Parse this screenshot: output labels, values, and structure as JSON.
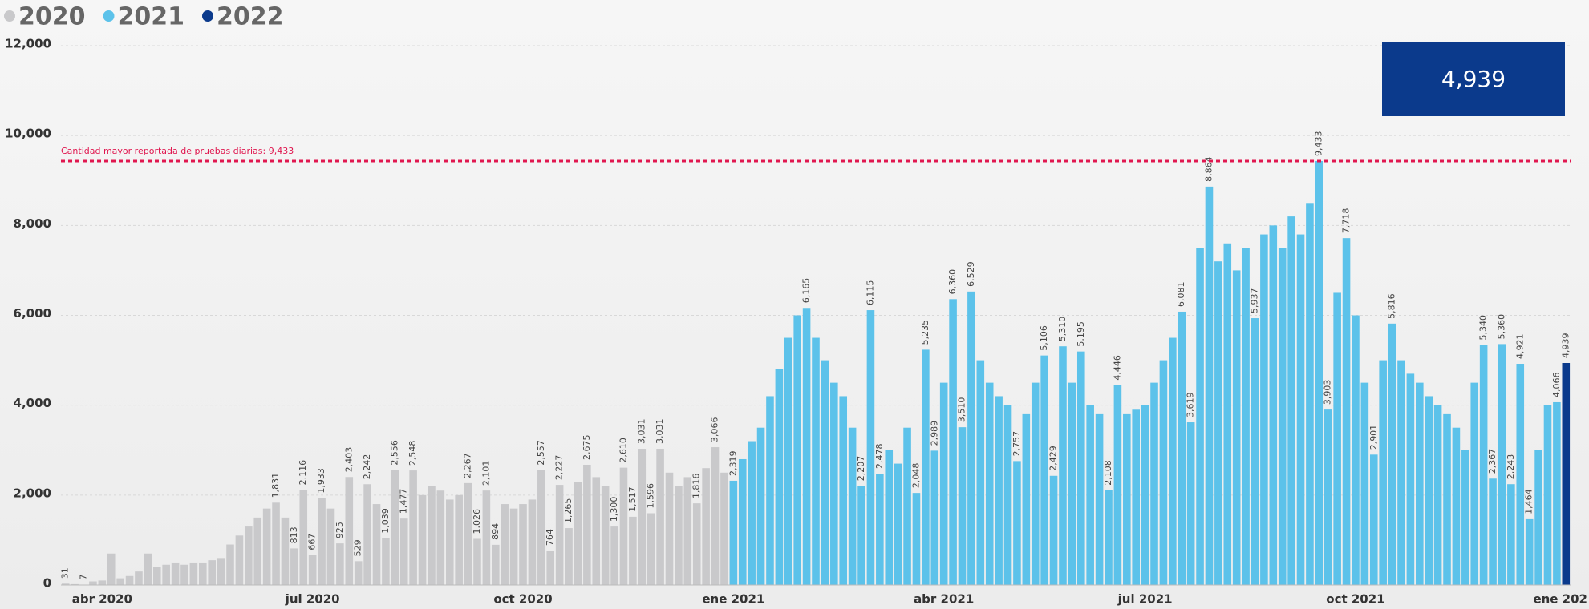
{
  "chart_data": {
    "type": "bar",
    "series": [
      {
        "name": "2020",
        "color": "#c9c9cb",
        "values": [
          31,
          20,
          7,
          80,
          100,
          700,
          150,
          200,
          300,
          700,
          400,
          450,
          500,
          450,
          500,
          500,
          550,
          600,
          900,
          1100,
          1300,
          1500,
          1700,
          1831,
          1500,
          813,
          2116,
          667,
          1933,
          1700,
          925,
          2403,
          529,
          2242,
          1800,
          1039,
          2556,
          1477,
          2548,
          2000,
          2200,
          2100,
          1900,
          2000,
          2267,
          1026,
          2101,
          894,
          1800,
          1700,
          1800,
          1900,
          2557,
          764,
          2227,
          1265,
          2300,
          2675,
          2400,
          2200,
          1300,
          2610,
          1517,
          3031,
          1596,
          3031,
          2500,
          2200,
          2400,
          1816,
          2600,
          3066,
          2500,
          null,
          null,
          null,
          null,
          null,
          null,
          null,
          null,
          null,
          null,
          null,
          null,
          null,
          null,
          null,
          null,
          null,
          null,
          null,
          null,
          null,
          null,
          null,
          null,
          null,
          null,
          null,
          null,
          null,
          null,
          null,
          null,
          null,
          null,
          null,
          null,
          null,
          null,
          null,
          null,
          null,
          null,
          null,
          null,
          null,
          null,
          null,
          null,
          null,
          null,
          null,
          null,
          null,
          null,
          null,
          null,
          null,
          null,
          null,
          null,
          null,
          null,
          null,
          null,
          null,
          null,
          null,
          null,
          null,
          null,
          null,
          null,
          null,
          null,
          null,
          null,
          null,
          null,
          null,
          null,
          null,
          null,
          null,
          null,
          null,
          null,
          null,
          null,
          null,
          null,
          null,
          null
        ],
        "value_labels": [
          "31",
          null,
          "7",
          null,
          null,
          null,
          null,
          null,
          null,
          null,
          null,
          null,
          null,
          null,
          null,
          null,
          null,
          null,
          null,
          null,
          null,
          null,
          null,
          "1,831",
          null,
          "813",
          "2,116",
          "667",
          "1,933",
          null,
          "925",
          "2,403",
          "529",
          "2,242",
          null,
          "1,039",
          "2,556",
          "1,477",
          "2,548",
          null,
          null,
          null,
          null,
          null,
          "2,267",
          "1,026",
          "2,101",
          "894",
          null,
          null,
          null,
          null,
          "2,557",
          "764",
          "2,227",
          "1,265",
          null,
          "2,675",
          null,
          null,
          "1,300",
          "2,610",
          "1,517",
          "3,031",
          "1,596",
          "3,031",
          null,
          null,
          null,
          "1,816",
          null,
          "3,066",
          null,
          null,
          null,
          null,
          null,
          null,
          null,
          null,
          null,
          null,
          null,
          null,
          null,
          null,
          null,
          null,
          null,
          null,
          null,
          null,
          null,
          null,
          null,
          null,
          null,
          null,
          null,
          null,
          null,
          null,
          null,
          null,
          null,
          null,
          null,
          null,
          null,
          null,
          null,
          null,
          null,
          null,
          null,
          null,
          null,
          null,
          null,
          null,
          null,
          null,
          null,
          null,
          null,
          null,
          null,
          null,
          null,
          null,
          null,
          null,
          null,
          null,
          null,
          null,
          null,
          null,
          null,
          null,
          null,
          null,
          null,
          null,
          null,
          null,
          null,
          null,
          null,
          null,
          null,
          null,
          null,
          null,
          null,
          null,
          null,
          null,
          null,
          null,
          null,
          null,
          null,
          null,
          null
        ]
      },
      {
        "name": "2021",
        "color": "#5cc2ea",
        "values": [
          null,
          null,
          null,
          null,
          null,
          null,
          null,
          null,
          null,
          null,
          null,
          null,
          null,
          null,
          null,
          null,
          null,
          null,
          null,
          null,
          null,
          null,
          null,
          null,
          null,
          null,
          null,
          null,
          null,
          null,
          null,
          null,
          null,
          null,
          null,
          null,
          null,
          null,
          null,
          null,
          null,
          null,
          null,
          null,
          null,
          null,
          null,
          null,
          null,
          null,
          null,
          null,
          null,
          null,
          null,
          null,
          null,
          null,
          null,
          null,
          null,
          null,
          null,
          null,
          null,
          null,
          null,
          null,
          null,
          null,
          null,
          null,
          null,
          2319,
          2800,
          3200,
          3500,
          4200,
          4800,
          5500,
          6000,
          6165,
          5500,
          5000,
          4500,
          4200,
          3500,
          2207,
          6115,
          2478,
          3000,
          2700,
          3500,
          2048,
          5235,
          2989,
          4500,
          6360,
          3510,
          6529,
          5000,
          4500,
          4200,
          4000,
          2757,
          3800,
          4500,
          5106,
          2429,
          5310,
          4500,
          5195,
          4000,
          3800,
          2108,
          4446,
          3800,
          3900,
          4000,
          4500,
          5000,
          5500,
          6081,
          3619,
          7500,
          8864,
          7200,
          7600,
          7000,
          7500,
          5937,
          7800,
          8000,
          7500,
          8200,
          7800,
          8500,
          9433,
          3903,
          6500,
          7718,
          6000,
          4500,
          2901,
          5000,
          5816,
          5000,
          4700,
          4500,
          4200,
          4000,
          3800,
          3500,
          3000,
          4500,
          5340,
          2367,
          5360,
          2243,
          4921,
          1464,
          3000,
          4000,
          4066,
          null
        ],
        "value_labels": [
          null,
          null,
          null,
          null,
          null,
          null,
          null,
          null,
          null,
          null,
          null,
          null,
          null,
          null,
          null,
          null,
          null,
          null,
          null,
          null,
          null,
          null,
          null,
          null,
          null,
          null,
          null,
          null,
          null,
          null,
          null,
          null,
          null,
          null,
          null,
          null,
          null,
          null,
          null,
          null,
          null,
          null,
          null,
          null,
          null,
          null,
          null,
          null,
          null,
          null,
          null,
          null,
          null,
          null,
          null,
          null,
          null,
          null,
          null,
          null,
          null,
          null,
          null,
          null,
          null,
          null,
          null,
          null,
          null,
          null,
          null,
          null,
          null,
          "2,319",
          null,
          null,
          null,
          null,
          null,
          null,
          null,
          "6,165",
          null,
          null,
          null,
          null,
          null,
          "2,207",
          "6,115",
          "2,478",
          null,
          null,
          null,
          "2,048",
          "5,235",
          "2,989",
          null,
          "6,360",
          "3,510",
          "6,529",
          null,
          null,
          null,
          null,
          "2,757",
          null,
          null,
          "5,106",
          "2,429",
          "5,310",
          null,
          "5,195",
          null,
          null,
          "2,108",
          "4,446",
          null,
          null,
          null,
          null,
          null,
          null,
          "6,081",
          "3,619",
          null,
          "8,864",
          null,
          null,
          null,
          null,
          "5,937",
          null,
          null,
          null,
          null,
          null,
          null,
          "9,433",
          "3,903",
          null,
          "7,718",
          null,
          null,
          "2,901",
          null,
          "5,816",
          null,
          null,
          null,
          null,
          null,
          null,
          null,
          null,
          null,
          "5,340",
          "2,367",
          "5,360",
          "2,243",
          "4,921",
          "1,464",
          null,
          null,
          "4,066",
          null
        ]
      },
      {
        "name": "2022",
        "color": "#0b3a8c",
        "values": [
          null,
          null,
          null,
          null,
          null,
          null,
          null,
          null,
          null,
          null,
          null,
          null,
          null,
          null,
          null,
          null,
          null,
          null,
          null,
          null,
          null,
          null,
          null,
          null,
          null,
          null,
          null,
          null,
          null,
          null,
          null,
          null,
          null,
          null,
          null,
          null,
          null,
          null,
          null,
          null,
          null,
          null,
          null,
          null,
          null,
          null,
          null,
          null,
          null,
          null,
          null,
          null,
          null,
          null,
          null,
          null,
          null,
          null,
          null,
          null,
          null,
          null,
          null,
          null,
          null,
          null,
          null,
          null,
          null,
          null,
          null,
          null,
          null,
          null,
          null,
          null,
          null,
          null,
          null,
          null,
          null,
          null,
          null,
          null,
          null,
          null,
          null,
          null,
          null,
          null,
          null,
          null,
          null,
          null,
          null,
          null,
          null,
          null,
          null,
          null,
          null,
          null,
          null,
          null,
          null,
          null,
          null,
          null,
          null,
          null,
          null,
          null,
          null,
          null,
          null,
          null,
          null,
          null,
          null,
          null,
          null,
          null,
          null,
          null,
          null,
          null,
          null,
          null,
          null,
          null,
          null,
          null,
          null,
          null,
          null,
          null,
          null,
          null,
          null,
          null,
          null,
          null,
          null,
          null,
          null,
          null,
          null,
          null,
          null,
          null,
          null,
          null,
          null,
          null,
          null,
          null,
          null,
          null,
          null,
          null,
          null,
          null,
          null,
          null,
          4939
        ],
        "value_labels": [
          null,
          null,
          null,
          null,
          null,
          null,
          null,
          null,
          null,
          null,
          null,
          null,
          null,
          null,
          null,
          null,
          null,
          null,
          null,
          null,
          null,
          null,
          null,
          null,
          null,
          null,
          null,
          null,
          null,
          null,
          null,
          null,
          null,
          null,
          null,
          null,
          null,
          null,
          null,
          null,
          null,
          null,
          null,
          null,
          null,
          null,
          null,
          null,
          null,
          null,
          null,
          null,
          null,
          null,
          null,
          null,
          null,
          null,
          null,
          null,
          null,
          null,
          null,
          null,
          null,
          null,
          null,
          null,
          null,
          null,
          null,
          null,
          null,
          null,
          null,
          null,
          null,
          null,
          null,
          null,
          null,
          null,
          null,
          null,
          null,
          null,
          null,
          null,
          null,
          null,
          null,
          null,
          null,
          null,
          null,
          null,
          null,
          null,
          null,
          null,
          null,
          null,
          null,
          null,
          null,
          null,
          null,
          null,
          null,
          null,
          null,
          null,
          null,
          null,
          null,
          null,
          null,
          null,
          null,
          null,
          null,
          null,
          null,
          null,
          null,
          null,
          null,
          null,
          null,
          null,
          null,
          null,
          null,
          null,
          null,
          null,
          null,
          null,
          null,
          null,
          null,
          null,
          null,
          null,
          null,
          null,
          null,
          null,
          null,
          null,
          null,
          null,
          null,
          null,
          null,
          null,
          null,
          null,
          null,
          null,
          null,
          null,
          null,
          null,
          "4,939"
        ]
      }
    ],
    "categories": [
      null,
      null,
      null,
      null,
      "abr 2020",
      null,
      null,
      null,
      null,
      null,
      null,
      null,
      null,
      null,
      null,
      null,
      null,
      null,
      null,
      null,
      null,
      null,
      null,
      null,
      null,
      null,
      null,
      "jul 2020",
      null,
      null,
      null,
      null,
      null,
      null,
      null,
      null,
      null,
      null,
      null,
      null,
      null,
      null,
      null,
      null,
      null,
      null,
      null,
      null,
      null,
      null,
      "oct 2020",
      null,
      null,
      null,
      null,
      null,
      null,
      null,
      null,
      null,
      null,
      null,
      null,
      null,
      null,
      null,
      null,
      null,
      null,
      null,
      null,
      null,
      null,
      "ene 2021",
      null,
      null,
      null,
      null,
      null,
      null,
      null,
      null,
      null,
      null,
      null,
      null,
      null,
      null,
      null,
      null,
      null,
      null,
      null,
      null,
      null,
      null,
      "abr 2021",
      null,
      null,
      null,
      null,
      null,
      null,
      null,
      null,
      null,
      null,
      null,
      null,
      null,
      null,
      null,
      null,
      null,
      null,
      null,
      null,
      null,
      "jul 2021",
      null,
      null,
      null,
      null,
      null,
      null,
      null,
      null,
      null,
      null,
      null,
      null,
      null,
      null,
      null,
      null,
      null,
      null,
      null,
      null,
      null,
      null,
      "oct 2021",
      null,
      null,
      null,
      null,
      null,
      null,
      null,
      null,
      null,
      null,
      null,
      null,
      null,
      null,
      null,
      null,
      null,
      null,
      null,
      null,
      null,
      null,
      "ene 202"
    ],
    "ylim": [
      0,
      12000
    ],
    "yticks": [
      0,
      {
        "value": 2000,
        "label": "2,000"
      },
      {
        "value": 4000,
        "label": "4,000"
      },
      {
        "value": 6000,
        "label": "6,000"
      },
      {
        "value": 8000,
        "label": "8,000"
      },
      {
        "value": 10000,
        "label": "10,000"
      },
      {
        "value": 12000,
        "label": "12,000"
      }
    ],
    "grid": true,
    "legend": "top-left",
    "reference_line": {
      "value": 9433,
      "label": "Cantidad mayor reportada de pruebas diarias: 9,433",
      "color": "#e0174f"
    },
    "card": {
      "value": 4939,
      "label": "4,939",
      "color": "#0b3a8c"
    }
  }
}
